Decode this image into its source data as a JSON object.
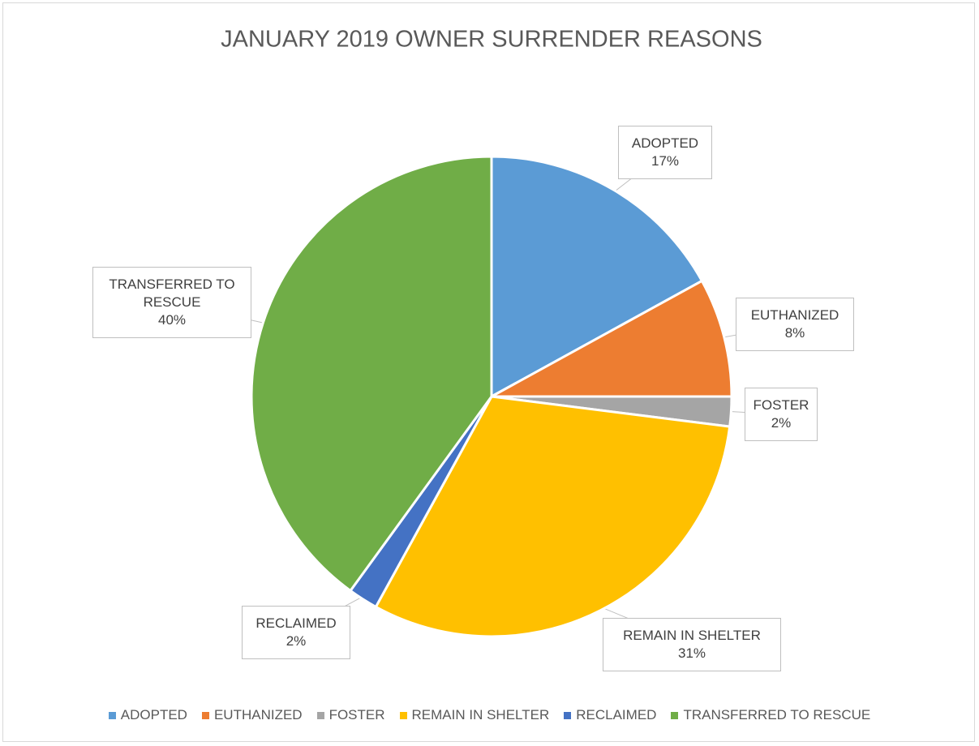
{
  "chart_data": {
    "type": "pie",
    "title": "JANUARY 2019 OWNER SURRENDER REASONS",
    "categories": [
      "ADOPTED",
      "EUTHANIZED",
      "FOSTER",
      "REMAIN IN SHELTER",
      "RECLAIMED",
      "TRANSFERRED TO RESCUE"
    ],
    "values": [
      17,
      8,
      2,
      31,
      2,
      40
    ],
    "value_labels": [
      "17%",
      "8%",
      "2%",
      "31%",
      "2%",
      "40%"
    ],
    "colors": [
      "#5b9bd5",
      "#ed7d31",
      "#a5a5a5",
      "#ffc000",
      "#4472c4",
      "#70ad47"
    ],
    "legend": "bottom"
  }
}
